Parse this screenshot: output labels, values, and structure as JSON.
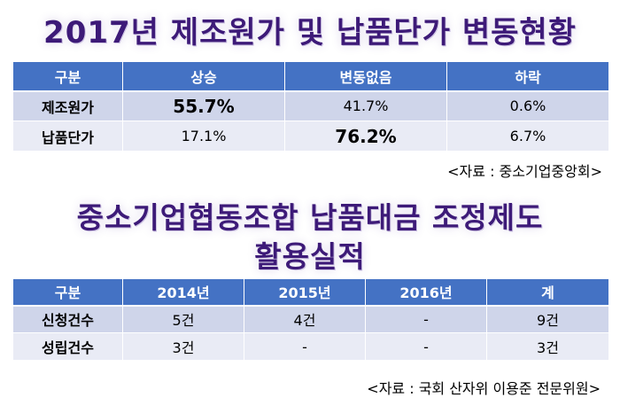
{
  "section1": {
    "title": "2017년 제조원가 및 납품단가 변동현황",
    "headers": [
      "구분",
      "상승",
      "변동없음",
      "하락"
    ],
    "rows": [
      {
        "label": "제조원가",
        "cells": [
          "55.7%",
          "41.7%",
          "0.6%"
        ]
      },
      {
        "label": "납품단가",
        "cells": [
          "17.1%",
          "76.2%",
          "6.7%"
        ]
      }
    ],
    "source": "<자료 : 중소기업중앙회>"
  },
  "section2": {
    "title_line1": "중소기업협동조합 납품대금 조정제도",
    "title_line2": "활용실적",
    "headers": [
      "구분",
      "2014년",
      "2015년",
      "2016년",
      "계"
    ],
    "rows": [
      {
        "label": "신청건수",
        "cells": [
          "5건",
          "4건",
          "-",
          "9건"
        ]
      },
      {
        "label": "성립건수",
        "cells": [
          "3건",
          "-",
          "-",
          "3건"
        ]
      }
    ],
    "source": "<자료 : 국회 산자위 이용준 전문위원>"
  }
}
